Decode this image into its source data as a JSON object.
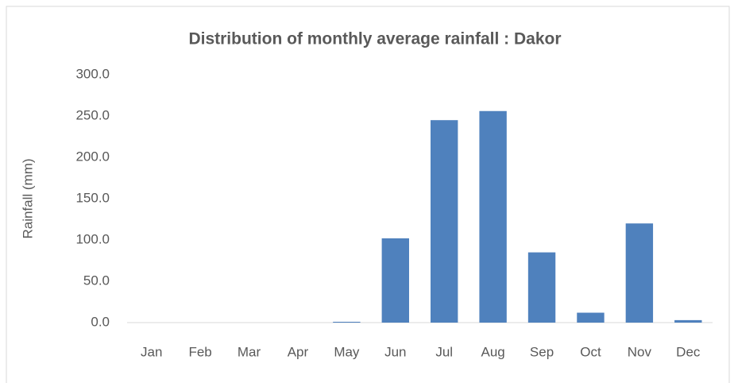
{
  "chart_data": {
    "type": "bar",
    "title": "Distribution of monthly average rainfall : Dakor",
    "y_label": "Rainfall (mm)",
    "categories": [
      "Jan",
      "Feb",
      "Mar",
      "Apr",
      "May",
      "Jun",
      "Jul",
      "Aug",
      "Sep",
      "Oct",
      "Nov",
      "Dec"
    ],
    "values": [
      0,
      0,
      0,
      0,
      1,
      102,
      245,
      256,
      85,
      12,
      120,
      3
    ],
    "color": "#4f81bd",
    "ylim": [
      0,
      300
    ],
    "yticks": [
      {
        "value": 0,
        "label": "0.0"
      },
      {
        "value": 50,
        "label": "50.0"
      },
      {
        "value": 100,
        "label": "100.0"
      },
      {
        "value": 150,
        "label": "150.0"
      },
      {
        "value": 200,
        "label": "200.0"
      },
      {
        "value": 250,
        "label": "250.0"
      },
      {
        "value": 300,
        "label": "300.0"
      }
    ],
    "grid": false
  }
}
